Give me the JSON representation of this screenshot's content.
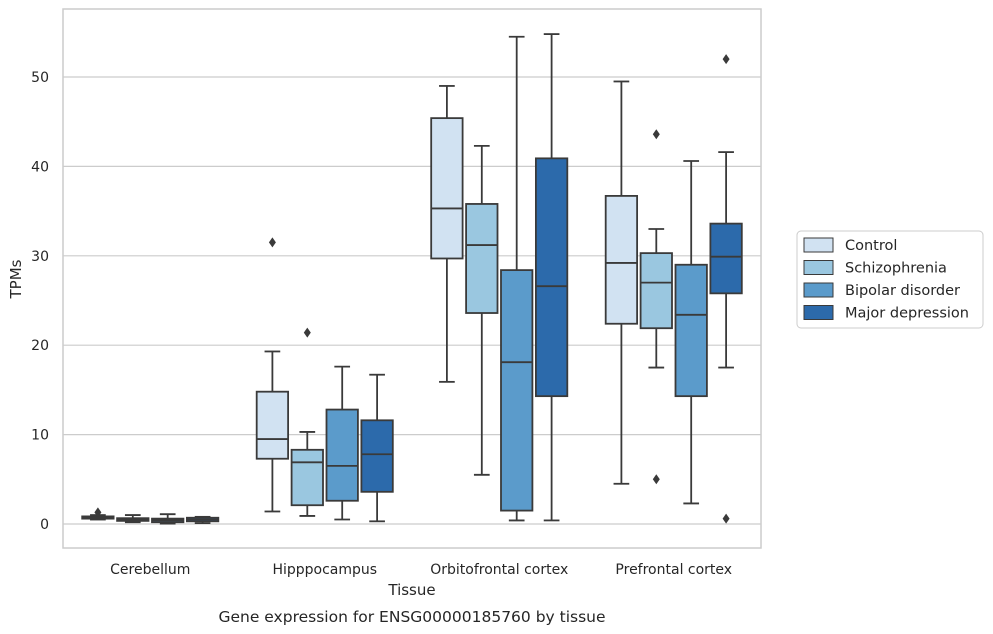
{
  "chart_data": {
    "type": "boxplot",
    "caption": "Gene expression for ENSG00000185760 by tissue",
    "xlabel": "Tissue",
    "ylabel": "TPMs",
    "ylim": [
      -2.6,
      57.5
    ],
    "yticks": [
      0,
      10,
      20,
      30,
      40,
      50
    ],
    "grid": "horizontal",
    "legend_position": "right",
    "categories": [
      "Cerebellum",
      "Hipppocampus",
      "Orbitofrontal cortex",
      "Prefrontal cortex"
    ],
    "series": [
      {
        "name": "Control",
        "color": "#d1e2f2",
        "boxes": [
          {
            "whisker_low": 0.5,
            "q1": 0.6,
            "median": 0.75,
            "q3": 0.85,
            "whisker_high": 1.0,
            "outliers": [
              1.3
            ]
          },
          {
            "whisker_low": 1.4,
            "q1": 7.3,
            "median": 9.5,
            "q3": 14.8,
            "whisker_high": 19.3,
            "outliers": [
              31.5
            ]
          },
          {
            "whisker_low": 15.9,
            "q1": 29.7,
            "median": 35.3,
            "q3": 45.4,
            "whisker_high": 49.0,
            "outliers": []
          },
          {
            "whisker_low": 4.5,
            "q1": 22.4,
            "median": 29.2,
            "q3": 36.7,
            "whisker_high": 49.5,
            "outliers": []
          }
        ]
      },
      {
        "name": "Schizophrenia",
        "color": "#9ac7e0",
        "boxes": [
          {
            "whisker_low": 0.2,
            "q1": 0.35,
            "median": 0.5,
            "q3": 0.65,
            "whisker_high": 1.0,
            "outliers": []
          },
          {
            "whisker_low": 0.9,
            "q1": 2.1,
            "median": 6.9,
            "q3": 8.3,
            "whisker_high": 10.3,
            "outliers": [
              21.4
            ]
          },
          {
            "whisker_low": 5.5,
            "q1": 23.6,
            "median": 31.2,
            "q3": 35.8,
            "whisker_high": 42.3,
            "outliers": []
          },
          {
            "whisker_low": 17.5,
            "q1": 21.9,
            "median": 27.0,
            "q3": 30.3,
            "whisker_high": 33.0,
            "outliers": [
              5.0,
              43.6
            ]
          }
        ]
      },
      {
        "name": "Bipolar disorder",
        "color": "#5b9bcb",
        "boxes": [
          {
            "whisker_low": 0.05,
            "q1": 0.2,
            "median": 0.4,
            "q3": 0.6,
            "whisker_high": 1.1,
            "outliers": []
          },
          {
            "whisker_low": 0.5,
            "q1": 2.6,
            "median": 6.5,
            "q3": 12.8,
            "whisker_high": 17.6,
            "outliers": []
          },
          {
            "whisker_low": 0.4,
            "q1": 1.5,
            "median": 18.1,
            "q3": 28.4,
            "whisker_high": 54.5,
            "outliers": []
          },
          {
            "whisker_low": 2.3,
            "q1": 14.3,
            "median": 23.4,
            "q3": 29.0,
            "whisker_high": 40.6,
            "outliers": []
          }
        ]
      },
      {
        "name": "Major depression",
        "color": "#2c6aab",
        "boxes": [
          {
            "whisker_low": 0.1,
            "q1": 0.3,
            "median": 0.5,
            "q3": 0.7,
            "whisker_high": 0.8,
            "outliers": []
          },
          {
            "whisker_low": 0.3,
            "q1": 3.6,
            "median": 7.8,
            "q3": 11.6,
            "whisker_high": 16.7,
            "outliers": []
          },
          {
            "whisker_low": 0.4,
            "q1": 14.3,
            "median": 26.6,
            "q3": 40.9,
            "whisker_high": 54.8,
            "outliers": []
          },
          {
            "whisker_low": 17.5,
            "q1": 25.8,
            "median": 29.9,
            "q3": 33.6,
            "whisker_high": 41.6,
            "outliers": [
              0.6,
              52.0
            ]
          }
        ]
      }
    ]
  }
}
